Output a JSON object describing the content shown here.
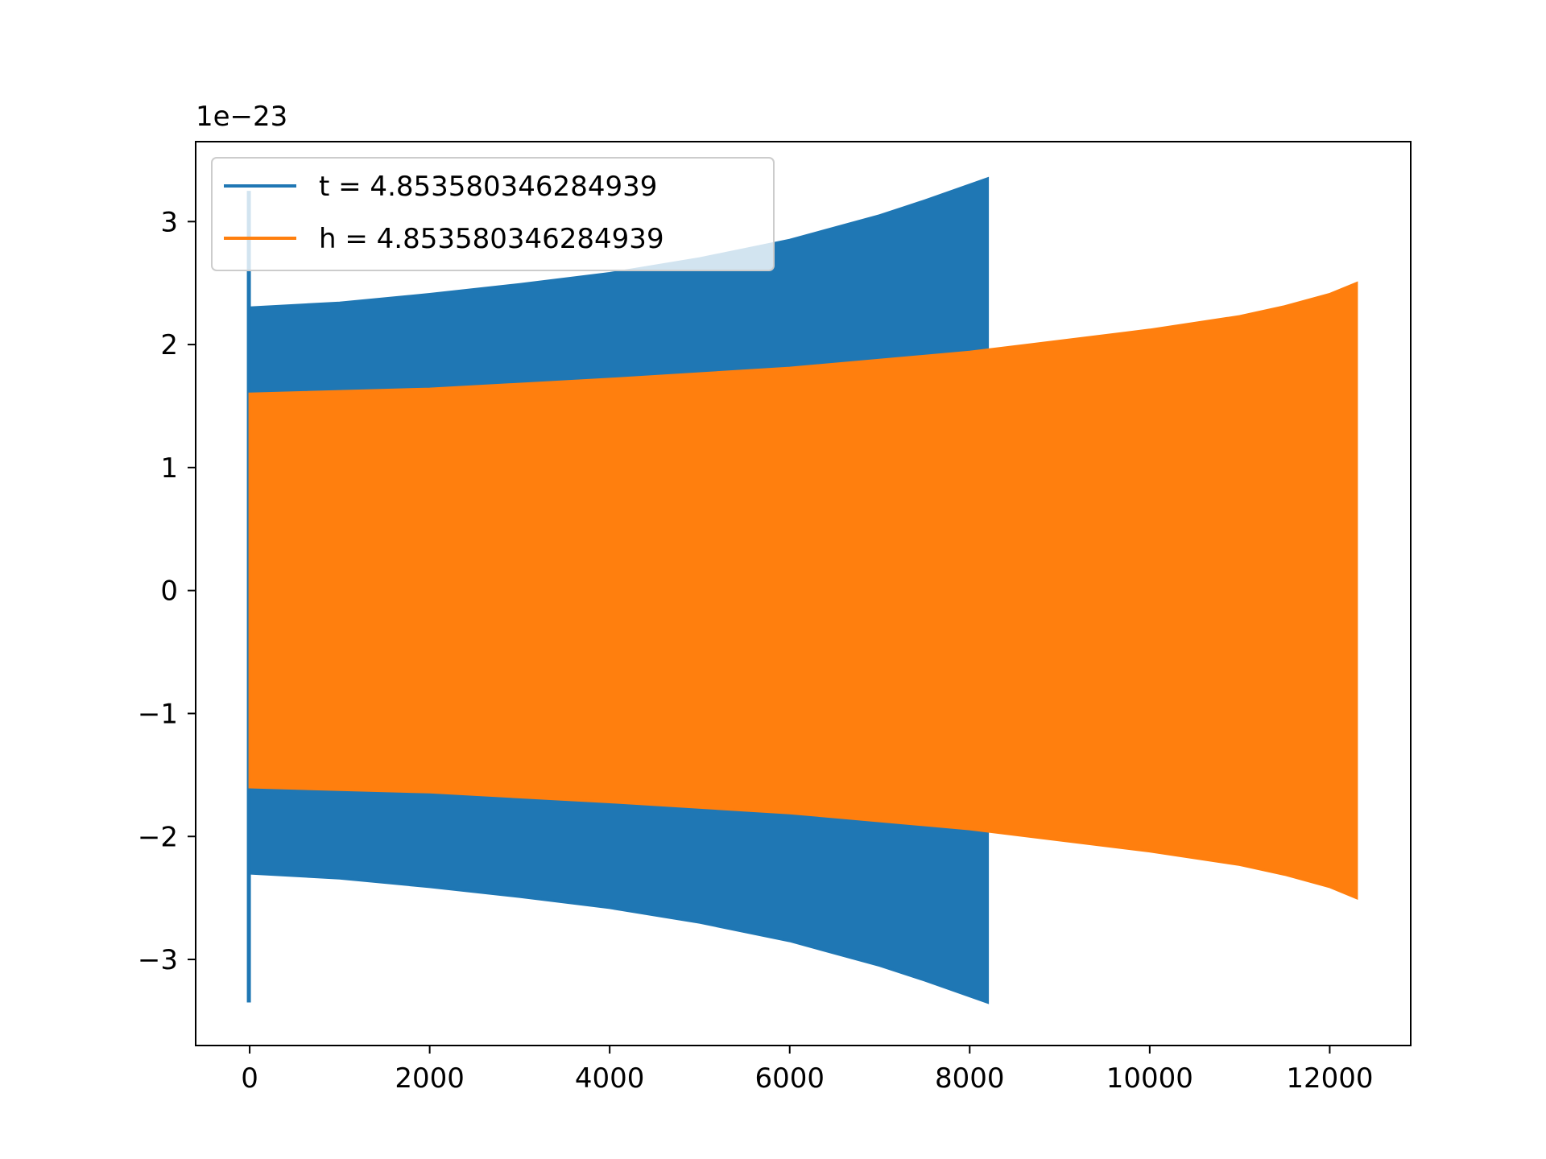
{
  "chart_data": {
    "type": "area",
    "title": "",
    "xlabel": "",
    "ylabel": "",
    "y_offset_label": "1e−23",
    "xlim": [
      -600,
      12900
    ],
    "ylim": [
      -3.7,
      3.65
    ],
    "x_ticks": [
      0,
      2000,
      4000,
      6000,
      8000,
      10000,
      12000
    ],
    "x_tick_labels": [
      "0",
      "2000",
      "4000",
      "6000",
      "8000",
      "10000",
      "12000"
    ],
    "y_ticks": [
      -3,
      -2,
      -1,
      0,
      1,
      2,
      3
    ],
    "y_tick_labels": [
      "−3",
      "−2",
      "−1",
      "0",
      "1",
      "2",
      "3"
    ],
    "grid": false,
    "legend_position": "top-left",
    "series": [
      {
        "name": "t = 4.853580346284939",
        "color": "#1f77b4",
        "envelope": {
          "x": [
            0,
            1000,
            2000,
            3000,
            4000,
            5000,
            6000,
            7000,
            7500,
            8200
          ],
          "upper": [
            2.3,
            2.34,
            2.41,
            2.49,
            2.58,
            2.7,
            2.85,
            3.05,
            3.17,
            3.35
          ],
          "lower": [
            -2.3,
            -2.34,
            -2.41,
            -2.49,
            -2.58,
            -2.7,
            -2.85,
            -3.05,
            -3.17,
            -3.35
          ]
        },
        "initial_spike": {
          "x": 0,
          "max": 3.25,
          "min": -3.35
        }
      },
      {
        "name": "h = 4.853580346284939",
        "color": "#ff7f0e",
        "envelope": {
          "x": [
            0,
            2000,
            4000,
            6000,
            8000,
            10000,
            11000,
            11500,
            12000,
            12300
          ],
          "upper": [
            1.6,
            1.64,
            1.72,
            1.81,
            1.94,
            2.12,
            2.23,
            2.31,
            2.41,
            2.5
          ],
          "lower": [
            -1.6,
            -1.64,
            -1.72,
            -1.81,
            -1.94,
            -2.12,
            -2.23,
            -2.31,
            -2.41,
            -2.5
          ]
        }
      }
    ]
  }
}
